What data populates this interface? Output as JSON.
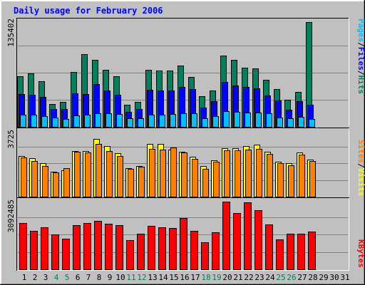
{
  "title": "Daily usage for February 2006",
  "colors": {
    "title": "#0000ff",
    "hits": "#00805c",
    "files": "#0000ff",
    "pages": "#00c0ff",
    "visits": "#ffff00",
    "sites": "#ff8000",
    "kbytes": "#ff0000",
    "day_normal": "#000000",
    "day_weekend": "#00805c",
    "plot_bg": "#c0c0c0",
    "grid": "#808080"
  },
  "chart_data": [
    {
      "type": "bar",
      "name": "hits-files-pages",
      "ymax_label": "135402",
      "ylim": [
        0,
        135402
      ],
      "legend": [
        "Pages",
        "Files",
        "Hits"
      ],
      "x": [
        1,
        2,
        3,
        4,
        5,
        6,
        7,
        8,
        9,
        10,
        11,
        12,
        13,
        14,
        15,
        16,
        17,
        18,
        19,
        20,
        21,
        22,
        23,
        24,
        25,
        26,
        27,
        28
      ],
      "series": [
        {
          "name": "Hits",
          "values": [
            63000,
            66500,
            57000,
            28500,
            31000,
            68500,
            91000,
            84000,
            71000,
            63000,
            27500,
            31500,
            71500,
            70500,
            70500,
            76500,
            62000,
            38500,
            45000,
            89000,
            84000,
            74000,
            73000,
            59000,
            47000,
            33500,
            44000,
            131000
          ]
        },
        {
          "name": "Files",
          "values": [
            41000,
            40000,
            37500,
            22000,
            22000,
            42000,
            41000,
            53500,
            45000,
            40000,
            18500,
            22000,
            46500,
            45000,
            45000,
            50000,
            47000,
            24000,
            32500,
            56500,
            52000,
            49500,
            48000,
            39000,
            33000,
            21000,
            32000,
            27500
          ]
        },
        {
          "name": "Pages",
          "values": [
            15000,
            15000,
            13500,
            11500,
            10000,
            14000,
            15000,
            17000,
            16500,
            16000,
            10500,
            11000,
            15500,
            15500,
            16000,
            17000,
            16500,
            10500,
            13500,
            19500,
            18500,
            18000,
            17500,
            16500,
            12000,
            10500,
            12500,
            10000
          ]
        }
      ]
    },
    {
      "type": "bar",
      "name": "visits-sites",
      "ymax_label": "3725",
      "ylim": [
        0,
        3725
      ],
      "legend": [
        "Sites",
        "Visits"
      ],
      "x": [
        1,
        2,
        3,
        4,
        5,
        6,
        7,
        8,
        9,
        10,
        11,
        12,
        13,
        14,
        15,
        16,
        17,
        18,
        19,
        20,
        21,
        22,
        23,
        24,
        25,
        26,
        27,
        28
      ],
      "series": [
        {
          "name": "Visits",
          "values": [
            2250,
            2150,
            1850,
            1400,
            1450,
            2550,
            2550,
            3220,
            2800,
            2400,
            1600,
            1700,
            2930,
            2950,
            2600,
            2500,
            2220,
            1690,
            2030,
            2710,
            2700,
            2810,
            2880,
            2490,
            1950,
            1850,
            2440,
            2060
          ]
        },
        {
          "name": "Sites",
          "values": [
            2180,
            2000,
            1700,
            1340,
            1580,
            2490,
            2450,
            2950,
            2520,
            2240,
            1540,
            1680,
            2650,
            2600,
            2730,
            2450,
            2110,
            1560,
            1940,
            2580,
            2580,
            2630,
            2660,
            2360,
            1850,
            1750,
            2330,
            1980
          ]
        }
      ]
    },
    {
      "type": "bar",
      "name": "kbytes",
      "ymax_label": "3092485",
      "ylim": [
        0,
        3092485
      ],
      "legend": [
        "KBytes"
      ],
      "x": [
        1,
        2,
        3,
        4,
        5,
        6,
        7,
        8,
        9,
        10,
        11,
        12,
        13,
        14,
        15,
        16,
        17,
        18,
        19,
        20,
        21,
        22,
        23,
        24,
        25,
        26,
        27,
        28
      ],
      "series": [
        {
          "name": "KBytes",
          "values": [
            2050000,
            1690000,
            1850000,
            1550000,
            1360000,
            1960000,
            2050000,
            2150000,
            2010000,
            1960000,
            1290000,
            1580000,
            1940000,
            1860000,
            1840000,
            2280000,
            1690000,
            1200000,
            1640000,
            3000000,
            2480000,
            2980000,
            2630000,
            2000000,
            1320000,
            1580000,
            1580000,
            1660000
          ]
        }
      ]
    }
  ],
  "days": [
    "1",
    "2",
    "3",
    "4",
    "5",
    "6",
    "7",
    "8",
    "9",
    "10",
    "11",
    "12",
    "13",
    "14",
    "15",
    "16",
    "17",
    "18",
    "19",
    "20",
    "21",
    "22",
    "23",
    "24",
    "25",
    "26",
    "27",
    "28",
    "29",
    "30",
    "31"
  ],
  "weekend_days": [
    4,
    5,
    11,
    12,
    18,
    19,
    25,
    26
  ]
}
